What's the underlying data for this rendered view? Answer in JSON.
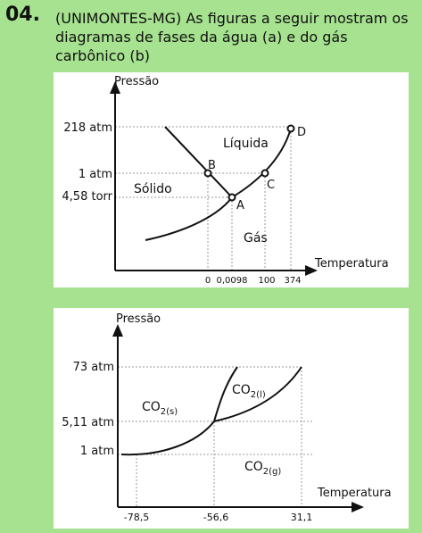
{
  "question": {
    "number": "04.",
    "text": "(UNIMONTES-MG) As figuras a seguir mostram os diagramas de fases da água (a) e do gás carbônico (b)"
  },
  "figure_a": {
    "y_axis_label": "Pressão",
    "x_axis_label": "Temperatura",
    "y_ticks": [
      "218 atm",
      "1 atm",
      "4,58 torr"
    ],
    "x_ticks": [
      "0",
      "0,0098",
      "100",
      "374"
    ],
    "regions": {
      "solid": "Sólido",
      "liquid": "Líquida",
      "gas": "Gás"
    },
    "points": [
      "A",
      "B",
      "C",
      "D"
    ]
  },
  "figure_b": {
    "y_axis_label": "Pressão",
    "x_axis_label": "Temperatura",
    "y_ticks": [
      "73 atm",
      "5,11 atm",
      "1 atm"
    ],
    "x_ticks": [
      "-78,5",
      "-56,6",
      "31,1"
    ],
    "regions": {
      "solid": {
        "base": "CO",
        "sub": "2(s)"
      },
      "liquid": {
        "base": "CO",
        "sub": "2(l)"
      },
      "gas": {
        "base": "CO",
        "sub": "2(g)"
      }
    }
  }
}
